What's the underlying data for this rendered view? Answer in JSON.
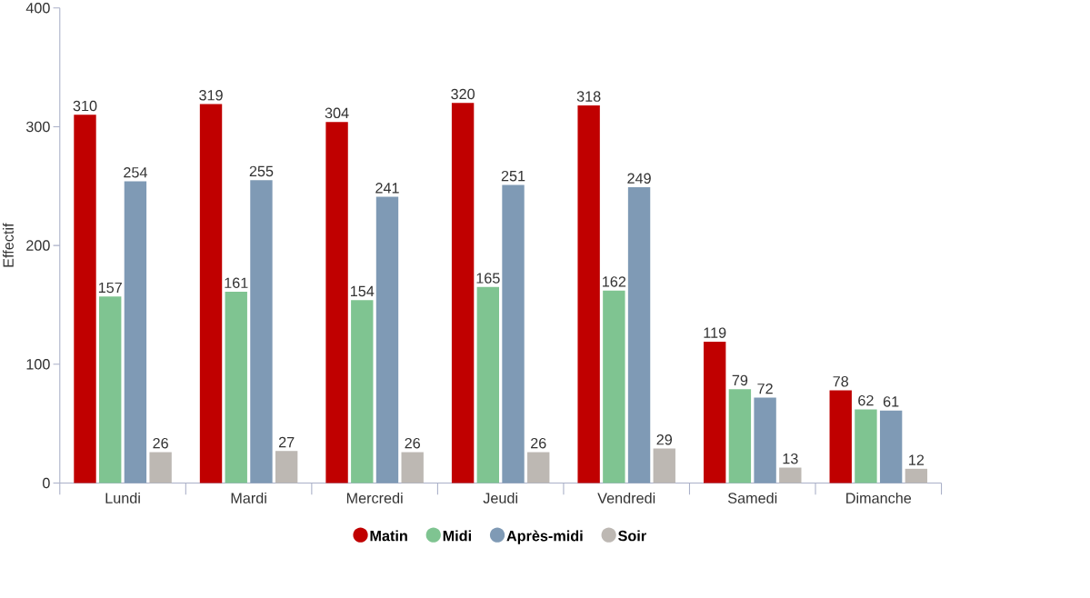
{
  "chart_data": {
    "type": "bar",
    "ylabel": "Effectif",
    "categories": [
      "Lundi",
      "Mardi",
      "Mercredi",
      "Jeudi",
      "Vendredi",
      "Samedi",
      "Dimanche"
    ],
    "series": [
      {
        "name": "Matin",
        "color": "#c00000",
        "values": [
          310,
          319,
          304,
          320,
          318,
          119,
          78
        ]
      },
      {
        "name": "Midi",
        "color": "#7fc491",
        "values": [
          157,
          161,
          154,
          165,
          162,
          79,
          62
        ]
      },
      {
        "name": "Après-midi",
        "color": "#7f9ab5",
        "values": [
          254,
          255,
          241,
          251,
          249,
          72,
          61
        ]
      },
      {
        "name": "Soir",
        "color": "#bdb8b3",
        "values": [
          26,
          27,
          26,
          26,
          29,
          13,
          12
        ]
      }
    ],
    "ylim": [
      0,
      400
    ],
    "yticks": [
      0,
      100,
      200,
      300,
      400
    ],
    "data_labels": true,
    "legend": "bottom",
    "grid": false
  }
}
